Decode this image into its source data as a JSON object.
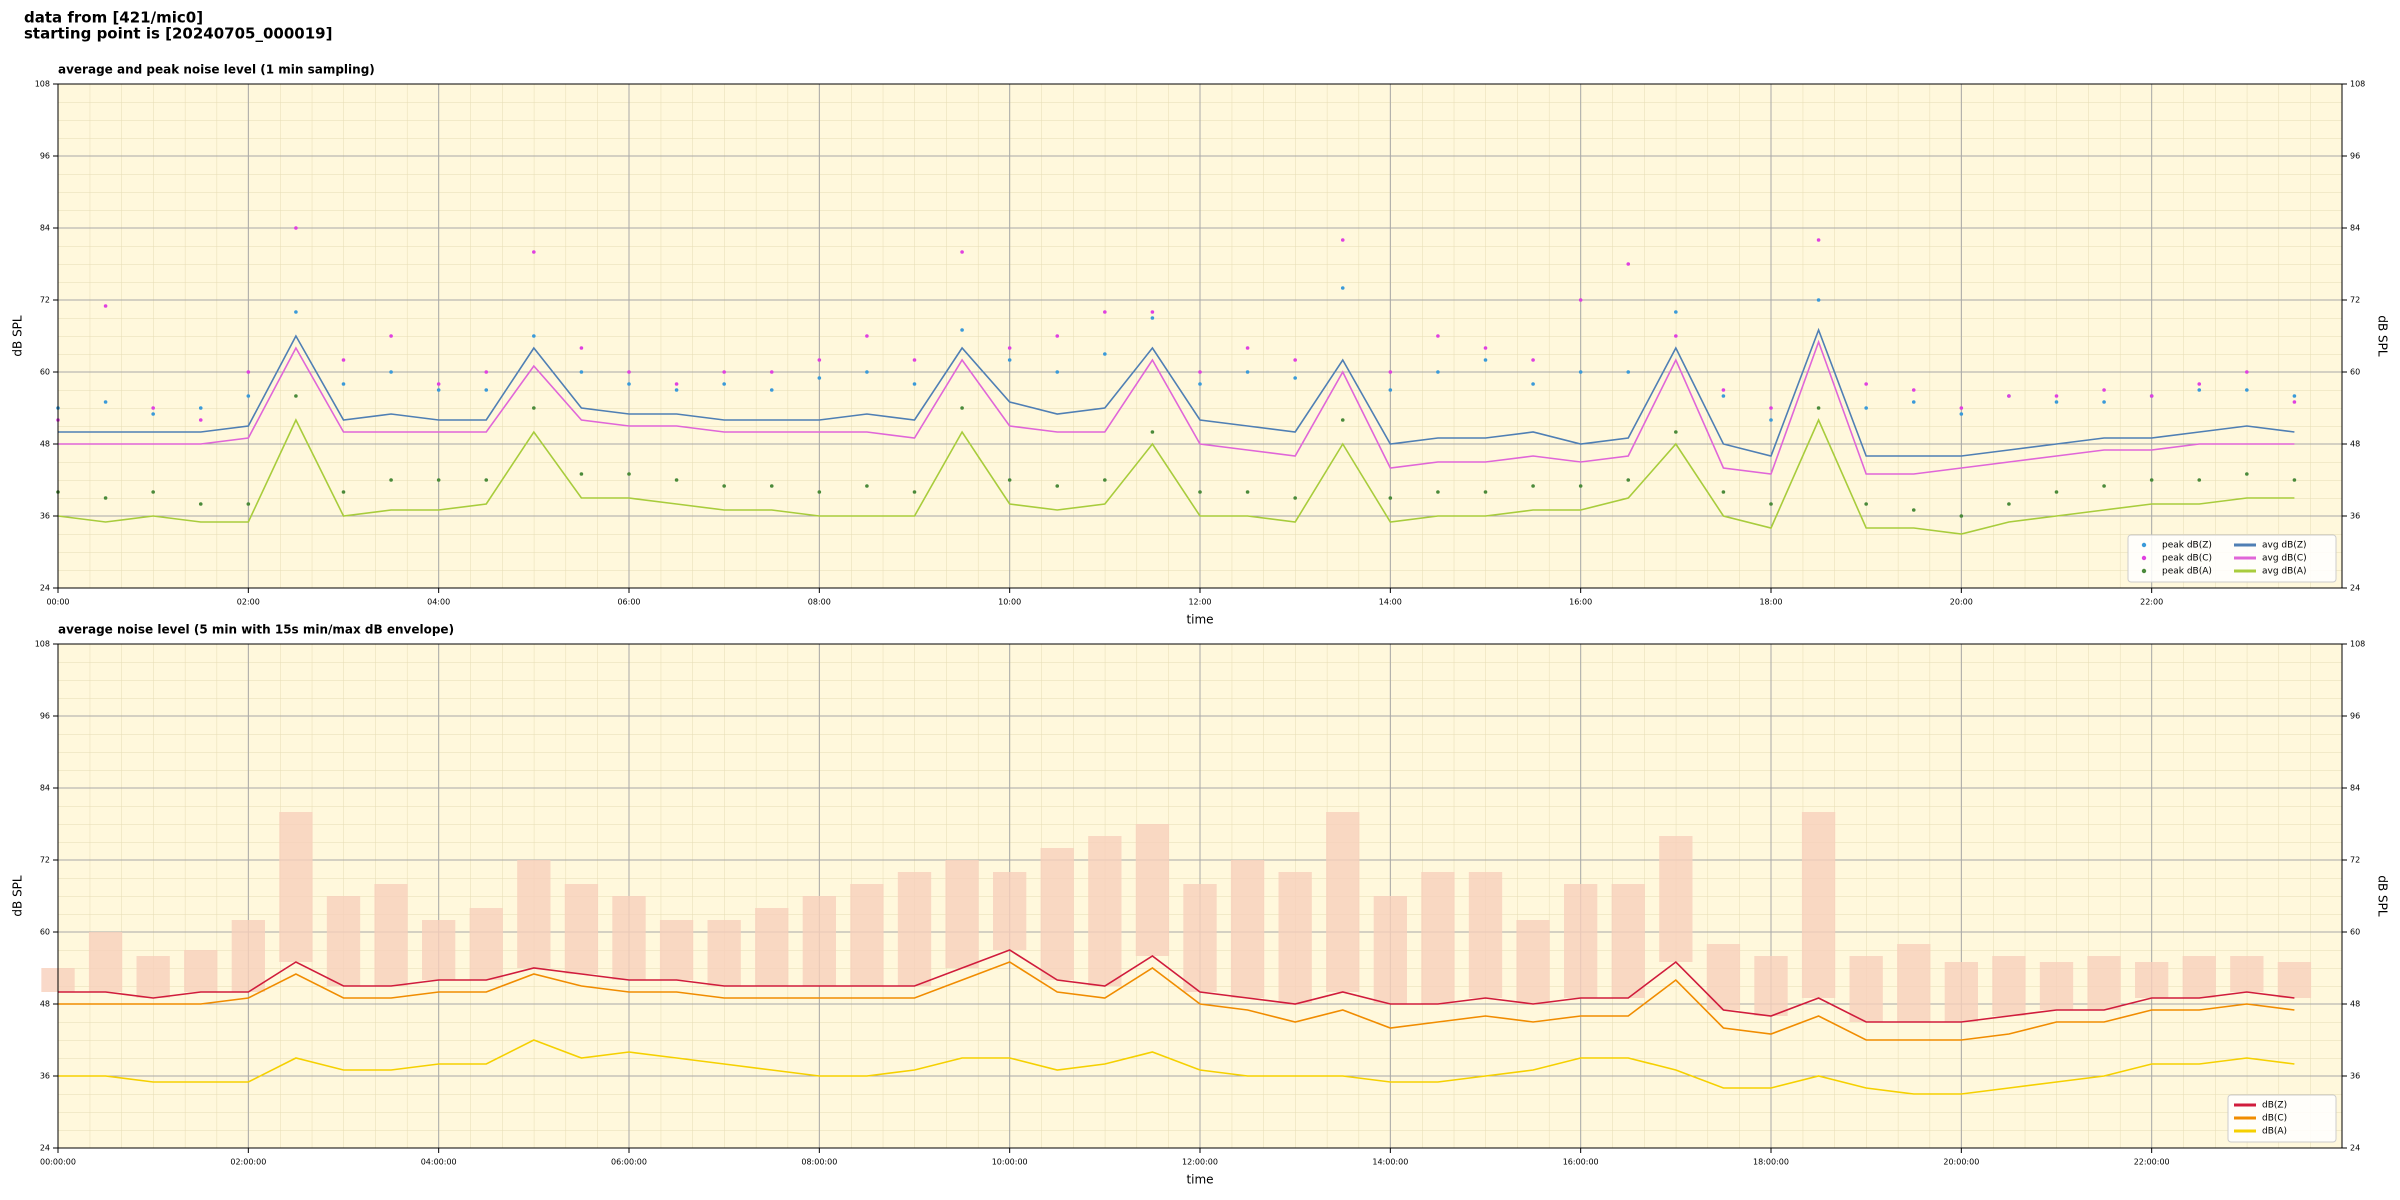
{
  "header": [
    "data from [421/mic0]",
    "starting point is [20240705_000019]"
  ],
  "chart_data": [
    {
      "type": "line",
      "title": "average and peak noise level (1 min sampling)",
      "xlabel": "time",
      "ylabel": "dB SPL",
      "xlim": [
        0,
        24
      ],
      "ylim": [
        24,
        108
      ],
      "yticks": [
        24,
        36,
        48,
        60,
        72,
        84,
        96,
        108
      ],
      "grid": true,
      "legend": "lower right",
      "legend_columns": 2,
      "xticks": [
        {
          "value": 0,
          "label": "00:00"
        },
        {
          "value": 2,
          "label": "02:00"
        },
        {
          "value": 4,
          "label": "04:00"
        },
        {
          "value": 6,
          "label": "06:00"
        },
        {
          "value": 8,
          "label": "08:00"
        },
        {
          "value": 10,
          "label": "10:00"
        },
        {
          "value": 12,
          "label": "12:00"
        },
        {
          "value": 14,
          "label": "14:00"
        },
        {
          "value": 16,
          "label": "16:00"
        },
        {
          "value": 18,
          "label": "18:00"
        },
        {
          "value": 20,
          "label": "20:00"
        },
        {
          "value": 22,
          "label": "22:00"
        }
      ],
      "x": [
        0,
        0.5,
        1,
        1.5,
        2,
        2.5,
        3,
        3.5,
        4,
        4.5,
        5,
        5.5,
        6,
        6.5,
        7,
        7.5,
        8,
        8.5,
        9,
        9.5,
        10,
        10.5,
        11,
        11.5,
        12,
        12.5,
        13,
        13.5,
        14,
        14.5,
        15,
        15.5,
        16,
        16.5,
        17,
        17.5,
        18,
        18.5,
        19,
        19.5,
        20,
        20.5,
        21,
        21.5,
        22,
        22.5,
        23,
        23.5
      ],
      "series": [
        {
          "name": "peak dB(Z)",
          "style": "scatter",
          "color": "#3a9ad9",
          "values": [
            54,
            55,
            53,
            54,
            56,
            70,
            58,
            60,
            57,
            57,
            66,
            60,
            58,
            57,
            58,
            57,
            59,
            60,
            58,
            67,
            62,
            60,
            63,
            69,
            58,
            60,
            59,
            74,
            57,
            60,
            62,
            58,
            60,
            60,
            70,
            56,
            52,
            72,
            54,
            55,
            53,
            56,
            55,
            55,
            56,
            57,
            57,
            56
          ]
        },
        {
          "name": "peak dB(C)",
          "style": "scatter",
          "color": "#e040e0",
          "values": [
            52,
            71,
            54,
            52,
            60,
            84,
            62,
            66,
            58,
            60,
            80,
            64,
            60,
            58,
            60,
            60,
            62,
            66,
            62,
            80,
            64,
            66,
            70,
            70,
            60,
            64,
            62,
            82,
            60,
            66,
            64,
            62,
            72,
            78,
            66,
            57,
            54,
            82,
            58,
            57,
            54,
            56,
            56,
            57,
            56,
            58,
            60,
            55
          ]
        },
        {
          "name": "peak dB(A)",
          "style": "scatter",
          "color": "#4a8a3a",
          "values": [
            40,
            39,
            40,
            38,
            38,
            56,
            40,
            42,
            42,
            42,
            54,
            43,
            43,
            42,
            41,
            41,
            40,
            41,
            40,
            54,
            42,
            41,
            42,
            50,
            40,
            40,
            39,
            52,
            39,
            40,
            40,
            41,
            41,
            42,
            50,
            40,
            38,
            54,
            38,
            37,
            36,
            38,
            40,
            41,
            42,
            42,
            43,
            42
          ]
        },
        {
          "name": "avg dB(Z)",
          "style": "line",
          "color": "#4f7fb4",
          "values": [
            50,
            50,
            50,
            50,
            51,
            66,
            52,
            53,
            52,
            52,
            64,
            54,
            53,
            53,
            52,
            52,
            52,
            53,
            52,
            64,
            55,
            53,
            54,
            64,
            52,
            51,
            50,
            62,
            48,
            49,
            49,
            50,
            48,
            49,
            64,
            48,
            46,
            67,
            46,
            46,
            46,
            47,
            48,
            49,
            49,
            50,
            51,
            50
          ]
        },
        {
          "name": "avg dB(C)",
          "style": "line",
          "color": "#e066d8",
          "values": [
            48,
            48,
            48,
            48,
            49,
            64,
            50,
            50,
            50,
            50,
            61,
            52,
            51,
            51,
            50,
            50,
            50,
            50,
            49,
            62,
            51,
            50,
            50,
            62,
            48,
            47,
            46,
            60,
            44,
            45,
            45,
            46,
            45,
            46,
            62,
            44,
            43,
            65,
            43,
            43,
            44,
            45,
            46,
            47,
            47,
            48,
            48,
            48
          ]
        },
        {
          "name": "avg dB(A)",
          "style": "line",
          "color": "#a8cc3c",
          "values": [
            36,
            35,
            36,
            35,
            35,
            52,
            36,
            37,
            37,
            38,
            50,
            39,
            39,
            38,
            37,
            37,
            36,
            36,
            36,
            50,
            38,
            37,
            38,
            48,
            36,
            36,
            35,
            48,
            35,
            36,
            36,
            37,
            37,
            39,
            48,
            36,
            34,
            52,
            34,
            34,
            33,
            35,
            36,
            37,
            38,
            38,
            39,
            39
          ]
        }
      ]
    },
    {
      "type": "line",
      "title": "average noise level (5 min with 15s min/max dB envelope)",
      "xlabel": "time",
      "ylabel": "dB SPL",
      "xlim": [
        0,
        24
      ],
      "ylim": [
        24,
        108
      ],
      "yticks": [
        24,
        36,
        48,
        60,
        72,
        84,
        96,
        108
      ],
      "grid": true,
      "legend": "lower right",
      "legend_columns": 1,
      "xticks": [
        {
          "value": 0,
          "label": "00:00:00"
        },
        {
          "value": 2,
          "label": "02:00:00"
        },
        {
          "value": 4,
          "label": "04:00:00"
        },
        {
          "value": 6,
          "label": "06:00:00"
        },
        {
          "value": 8,
          "label": "08:00:00"
        },
        {
          "value": 10,
          "label": "10:00:00"
        },
        {
          "value": 12,
          "label": "12:00:00"
        },
        {
          "value": 14,
          "label": "14:00:00"
        },
        {
          "value": 16,
          "label": "16:00:00"
        },
        {
          "value": 18,
          "label": "18:00:00"
        },
        {
          "value": 20,
          "label": "20:00:00"
        },
        {
          "value": 22,
          "label": "22:00:00"
        }
      ],
      "x": [
        0,
        0.5,
        1,
        1.5,
        2,
        2.5,
        3,
        3.5,
        4,
        4.5,
        5,
        5.5,
        6,
        6.5,
        7,
        7.5,
        8,
        8.5,
        9,
        9.5,
        10,
        10.5,
        11,
        11.5,
        12,
        12.5,
        13,
        13.5,
        14,
        14.5,
        15,
        15.5,
        16,
        16.5,
        17,
        17.5,
        18,
        18.5,
        19,
        19.5,
        20,
        20.5,
        21,
        21.5,
        22,
        22.5,
        23,
        23.5
      ],
      "envelope": {
        "color": "#f7cfbb",
        "upper": [
          54,
          60,
          56,
          57,
          62,
          80,
          66,
          68,
          62,
          64,
          72,
          68,
          66,
          62,
          62,
          64,
          66,
          68,
          70,
          72,
          70,
          74,
          76,
          78,
          68,
          72,
          70,
          80,
          66,
          70,
          70,
          62,
          68,
          68,
          76,
          58,
          56,
          80,
          56,
          58,
          55,
          56,
          55,
          56,
          55,
          56,
          56,
          55
        ]
      },
      "series": [
        {
          "name": "dB(Z)",
          "style": "line",
          "color": "#d01c3c",
          "values": [
            50,
            50,
            49,
            50,
            50,
            55,
            51,
            51,
            52,
            52,
            54,
            53,
            52,
            52,
            51,
            51,
            51,
            51,
            51,
            54,
            57,
            52,
            51,
            56,
            50,
            49,
            48,
            50,
            48,
            48,
            49,
            48,
            49,
            49,
            55,
            47,
            46,
            49,
            45,
            45,
            45,
            46,
            47,
            47,
            49,
            49,
            50,
            49
          ]
        },
        {
          "name": "dB(C)",
          "style": "line",
          "color": "#f08c00",
          "values": [
            48,
            48,
            48,
            48,
            49,
            53,
            49,
            49,
            50,
            50,
            53,
            51,
            50,
            50,
            49,
            49,
            49,
            49,
            49,
            52,
            55,
            50,
            49,
            54,
            48,
            47,
            45,
            47,
            44,
            45,
            46,
            45,
            46,
            46,
            52,
            44,
            43,
            46,
            42,
            42,
            42,
            43,
            45,
            45,
            47,
            47,
            48,
            47
          ]
        },
        {
          "name": "dB(A)",
          "style": "line",
          "color": "#f5d000",
          "values": [
            36,
            36,
            35,
            35,
            35,
            39,
            37,
            37,
            38,
            38,
            42,
            39,
            40,
            39,
            38,
            37,
            36,
            36,
            37,
            39,
            39,
            37,
            38,
            40,
            37,
            36,
            36,
            36,
            35,
            35,
            36,
            37,
            39,
            39,
            37,
            34,
            34,
            36,
            34,
            33,
            33,
            34,
            35,
            36,
            38,
            38,
            39,
            38
          ]
        }
      ]
    }
  ]
}
